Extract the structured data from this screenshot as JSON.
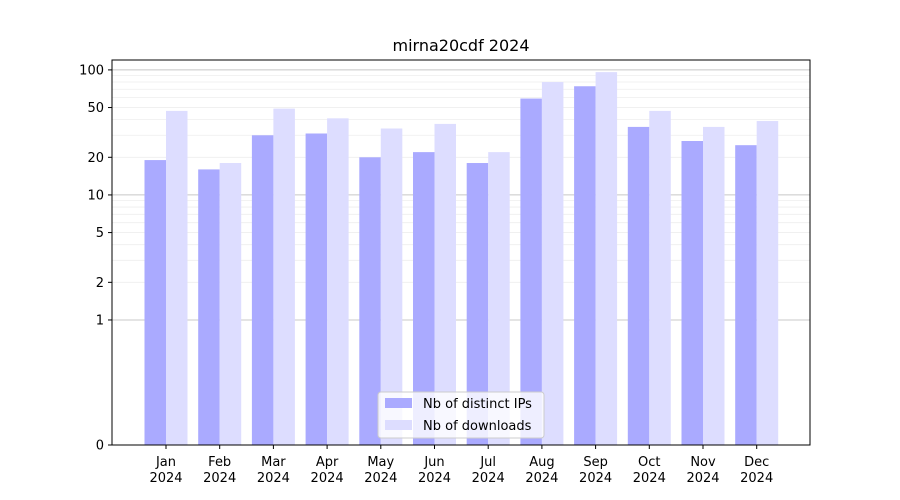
{
  "chart_data": {
    "type": "bar",
    "title": "mirna20cdf 2024",
    "xlabel": "",
    "ylabel": "",
    "yscale": "symlog",
    "ylim": [
      0,
      120
    ],
    "yticks": [
      0,
      1,
      2,
      5,
      10,
      20,
      50,
      100
    ],
    "ytick_labels": [
      "0",
      "1",
      "2",
      "5",
      "10",
      "20",
      "50",
      "100"
    ],
    "categories": [
      "Jan\n2024",
      "Feb\n2024",
      "Mar\n2024",
      "Apr\n2024",
      "May\n2024",
      "Jun\n2024",
      "Jul\n2024",
      "Aug\n2024",
      "Sep\n2024",
      "Oct\n2024",
      "Nov\n2024",
      "Dec\n2024"
    ],
    "series": [
      {
        "name": "Nb of distinct IPs",
        "color": "#aaaaff",
        "values": [
          19,
          16,
          30,
          31,
          20,
          22,
          18,
          59,
          74,
          35,
          27,
          25
        ]
      },
      {
        "name": "Nb of downloads",
        "color": "#ddddff",
        "values": [
          47,
          18,
          49,
          41,
          34,
          37,
          22,
          80,
          96,
          47,
          35,
          39
        ]
      }
    ],
    "legend_position": "bottom-center",
    "grid": "horizontal"
  }
}
